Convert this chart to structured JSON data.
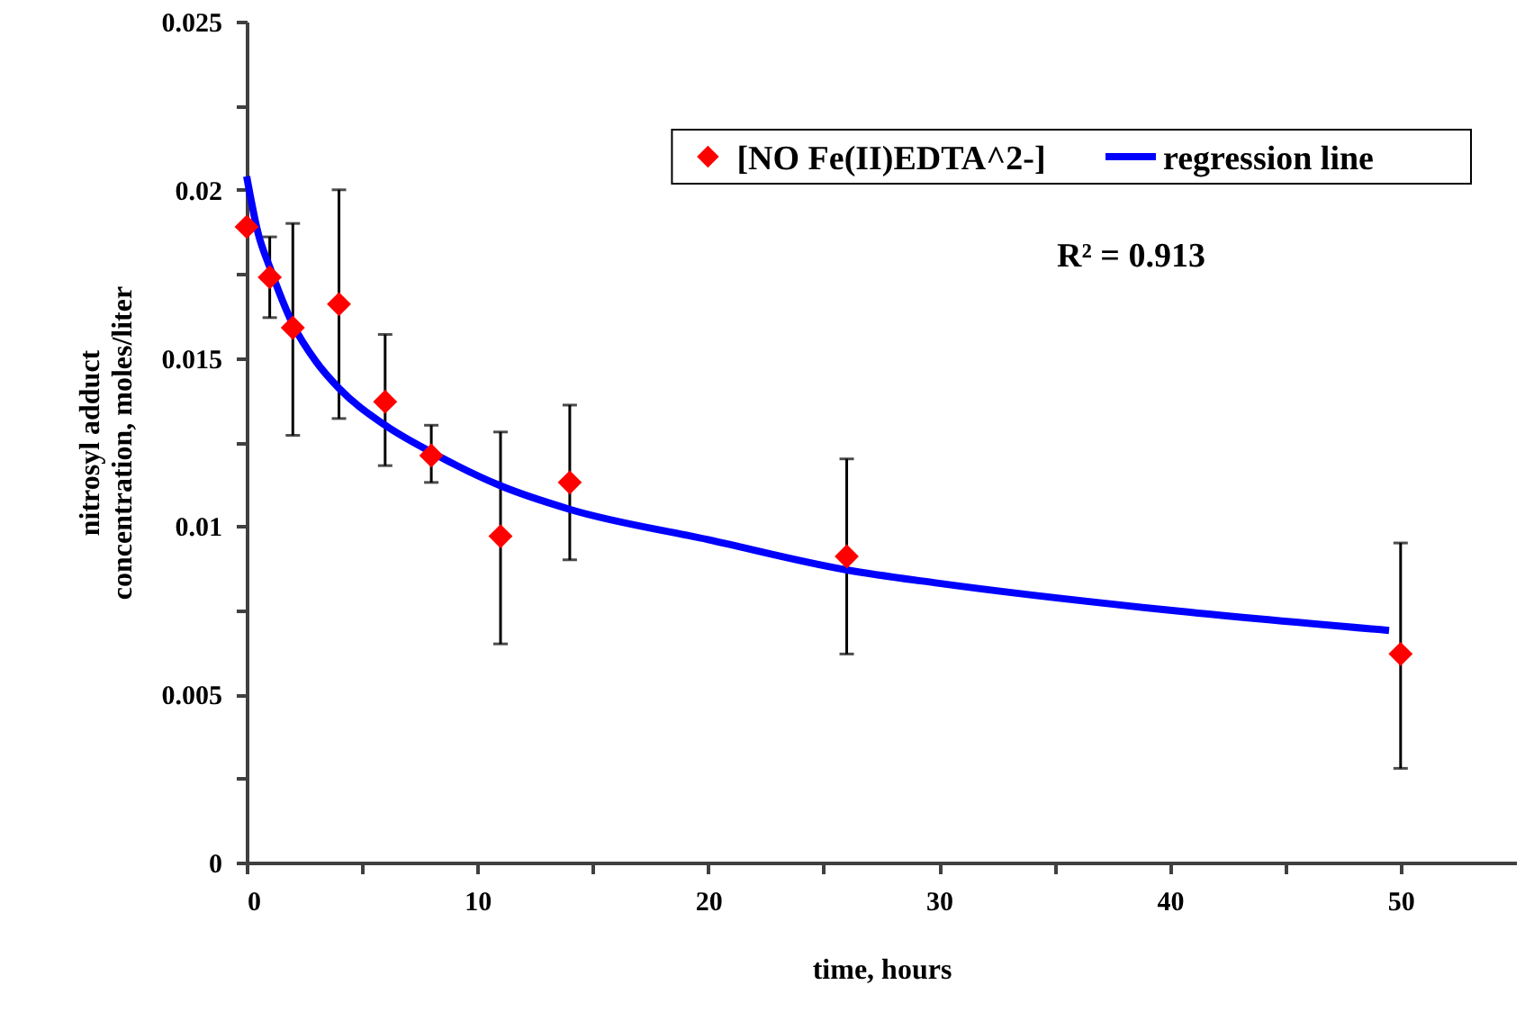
{
  "chart_data": {
    "type": "scatter",
    "xlabel": "time, hours",
    "ylabel": "nitrosyl adduct\nconcentration, moles/liter",
    "xlim": [
      0,
      55
    ],
    "xticks": [
      0,
      {
        "value": 5,
        "label": null
      },
      10,
      {
        "value": 15,
        "label": null
      },
      20,
      {
        "value": 25,
        "label": null
      },
      30,
      {
        "value": 35,
        "label": null
      },
      40,
      {
        "value": 45,
        "label": null
      },
      50
    ],
    "ylim": [
      0,
      0.025
    ],
    "yticks": [
      0,
      {
        "value": 0.0025,
        "label": null
      },
      0.005,
      {
        "value": 0.0075,
        "label": null
      },
      0.01,
      {
        "value": 0.0125,
        "label": null
      },
      0.015,
      {
        "value": 0.0175,
        "label": null
      },
      0.02,
      {
        "value": 0.0225,
        "label": null
      },
      0.025
    ],
    "grid": false,
    "legend": "top right",
    "annotations": [
      "R² = 0.913"
    ],
    "series": [
      {
        "name": "[NO Fe(II)EDTA^2-]",
        "type": "scatter",
        "marker": "diamond",
        "color": "#ff0000",
        "x": [
          0,
          1,
          2,
          4,
          6,
          8,
          11,
          14,
          26,
          50
        ],
        "values": [
          0.0189,
          0.0174,
          0.0159,
          0.0166,
          0.0137,
          0.0121,
          0.0097,
          0.0113,
          0.0091,
          0.0062
        ],
        "errors": [
          null,
          [
            0.0162,
            0.0186
          ],
          [
            0.0127,
            0.019
          ],
          [
            0.0132,
            0.02
          ],
          [
            0.0118,
            0.0157
          ],
          [
            0.0113,
            0.013
          ],
          [
            0.0065,
            0.0128
          ],
          [
            0.009,
            0.0136
          ],
          [
            0.0062,
            0.012
          ],
          [
            0.0028,
            0.0095
          ]
        ]
      },
      {
        "name": "regression line",
        "type": "line",
        "line_style": "solid",
        "color": "#0000ff",
        "x": [
          0,
          0.5,
          1,
          2,
          3,
          4,
          6,
          8,
          11,
          14,
          20,
          26,
          30,
          40,
          49.5
        ],
        "values": [
          0.0204,
          0.0187,
          0.0177,
          0.016,
          0.0149,
          0.0141,
          0.013,
          0.0122,
          0.0112,
          0.0105,
          0.0096,
          0.0087,
          0.0083,
          0.0075,
          0.0069
        ]
      }
    ]
  }
}
